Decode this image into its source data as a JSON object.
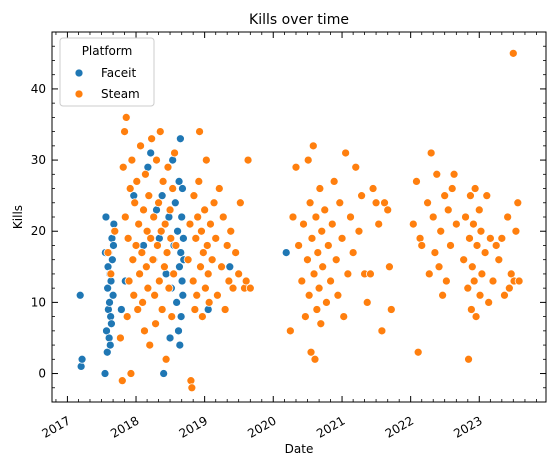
{
  "chart_data": {
    "type": "scatter",
    "title": "Kills over time",
    "xlabel": "Date",
    "ylabel": "Kills",
    "xlim": [
      "2016-10-11",
      "2023-12-22"
    ],
    "ylim": [
      -4,
      48
    ],
    "x_ticks": [
      "2017",
      "2018",
      "2019",
      "2020",
      "2021",
      "2022",
      "2023"
    ],
    "y_ticks": [
      "0",
      "10",
      "20",
      "30",
      "40"
    ],
    "grid": false,
    "legend": {
      "title": "Platform",
      "placement": "top-left"
    },
    "series": [
      {
        "name": "Faceit",
        "color": "#1f77b4",
        "points": [
          [
            "2017-03-10",
            11
          ],
          [
            "2017-03-15",
            1
          ],
          [
            "2017-03-20",
            2
          ],
          [
            "2017-07-20",
            0
          ],
          [
            "2017-07-22",
            17
          ],
          [
            "2017-07-25",
            22
          ],
          [
            "2017-07-28",
            6
          ],
          [
            "2017-08-01",
            3
          ],
          [
            "2017-08-03",
            12
          ],
          [
            "2017-08-05",
            15
          ],
          [
            "2017-08-07",
            9
          ],
          [
            "2017-08-09",
            17
          ],
          [
            "2017-08-11",
            5
          ],
          [
            "2017-08-13",
            10
          ],
          [
            "2017-08-15",
            14
          ],
          [
            "2017-08-17",
            4
          ],
          [
            "2017-08-19",
            8
          ],
          [
            "2017-08-21",
            13
          ],
          [
            "2017-08-23",
            7
          ],
          [
            "2017-08-26",
            19
          ],
          [
            "2017-08-28",
            16
          ],
          [
            "2017-09-01",
            11
          ],
          [
            "2017-09-03",
            18
          ],
          [
            "2017-09-05",
            21
          ],
          [
            "2017-09-07",
            20
          ],
          [
            "2017-10-15",
            9
          ],
          [
            "2017-11-05",
            13
          ],
          [
            "2017-12-20",
            25
          ],
          [
            "2018-01-15",
            21
          ],
          [
            "2018-02-10",
            18
          ],
          [
            "2018-03-05",
            29
          ],
          [
            "2018-03-20",
            31
          ],
          [
            "2018-04-05",
            16
          ],
          [
            "2018-04-20",
            23
          ],
          [
            "2018-05-05",
            19
          ],
          [
            "2018-05-20",
            25
          ],
          [
            "2018-05-28",
            0
          ],
          [
            "2018-06-10",
            14
          ],
          [
            "2018-06-25",
            22
          ],
          [
            "2018-07-01",
            5
          ],
          [
            "2018-07-08",
            12
          ],
          [
            "2018-07-15",
            30
          ],
          [
            "2018-07-22",
            18
          ],
          [
            "2018-07-29",
            24
          ],
          [
            "2018-08-05",
            10
          ],
          [
            "2018-08-10",
            20
          ],
          [
            "2018-08-15",
            6
          ],
          [
            "2018-08-18",
            27
          ],
          [
            "2018-08-20",
            15
          ],
          [
            "2018-08-22",
            4
          ],
          [
            "2018-08-25",
            33
          ],
          [
            "2018-08-27",
            17
          ],
          [
            "2018-08-29",
            8
          ],
          [
            "2018-09-01",
            22
          ],
          [
            "2018-09-03",
            13
          ],
          [
            "2018-09-05",
            26
          ],
          [
            "2018-09-07",
            11
          ],
          [
            "2018-09-10",
            19
          ],
          [
            "2018-09-12",
            16
          ],
          [
            "2019-01-20",
            9
          ],
          [
            "2019-05-15",
            15
          ],
          [
            "2020-03-10",
            17
          ]
        ]
      },
      {
        "name": "Steam",
        "color": "#ff7f0e",
        "points": [
          [
            "2017-08-05",
            17
          ],
          [
            "2017-08-20",
            14
          ],
          [
            "2017-09-10",
            20
          ],
          [
            "2017-10-10",
            5
          ],
          [
            "2017-10-20",
            -1
          ],
          [
            "2017-10-25",
            29
          ],
          [
            "2017-11-01",
            34
          ],
          [
            "2017-11-05",
            22
          ],
          [
            "2017-11-10",
            36
          ],
          [
            "2017-11-15",
            8
          ],
          [
            "2017-11-20",
            19
          ],
          [
            "2017-11-25",
            13
          ],
          [
            "2017-12-01",
            26
          ],
          [
            "2017-12-05",
            0
          ],
          [
            "2017-12-10",
            30
          ],
          [
            "2017-12-15",
            16
          ],
          [
            "2017-12-20",
            11
          ],
          [
            "2017-12-25",
            24
          ],
          [
            "2018-01-01",
            18
          ],
          [
            "2018-01-05",
            27
          ],
          [
            "2018-01-10",
            9
          ],
          [
            "2018-01-15",
            21
          ],
          [
            "2018-01-20",
            14
          ],
          [
            "2018-01-25",
            32
          ],
          [
            "2018-02-01",
            17
          ],
          [
            "2018-02-05",
            10
          ],
          [
            "2018-02-10",
            23
          ],
          [
            "2018-02-15",
            6
          ],
          [
            "2018-02-20",
            28
          ],
          [
            "2018-02-25",
            15
          ],
          [
            "2018-03-01",
            20
          ],
          [
            "2018-03-05",
            12
          ],
          [
            "2018-03-10",
            25
          ],
          [
            "2018-03-15",
            4
          ],
          [
            "2018-03-20",
            19
          ],
          [
            "2018-03-25",
            33
          ],
          [
            "2018-04-01",
            16
          ],
          [
            "2018-04-05",
            22
          ],
          [
            "2018-04-10",
            11
          ],
          [
            "2018-04-15",
            7
          ],
          [
            "2018-04-20",
            30
          ],
          [
            "2018-04-25",
            18
          ],
          [
            "2018-05-01",
            24
          ],
          [
            "2018-05-05",
            13
          ],
          [
            "2018-05-10",
            34
          ],
          [
            "2018-05-15",
            20
          ],
          [
            "2018-05-20",
            9
          ],
          [
            "2018-05-25",
            27
          ],
          [
            "2018-06-01",
            15
          ],
          [
            "2018-06-05",
            21
          ],
          [
            "2018-06-10",
            2
          ],
          [
            "2018-06-15",
            17
          ],
          [
            "2018-06-20",
            29
          ],
          [
            "2018-06-25",
            12
          ],
          [
            "2018-07-01",
            23
          ],
          [
            "2018-07-05",
            19
          ],
          [
            "2018-07-10",
            8
          ],
          [
            "2018-07-15",
            26
          ],
          [
            "2018-07-20",
            14
          ],
          [
            "2018-07-25",
            31
          ],
          [
            "2018-08-01",
            18
          ],
          [
            "2018-10-05",
            16
          ],
          [
            "2018-10-15",
            21
          ],
          [
            "2018-10-20",
            -1
          ],
          [
            "2018-10-25",
            -2
          ],
          [
            "2018-11-01",
            13
          ],
          [
            "2018-11-05",
            25
          ],
          [
            "2018-11-10",
            9
          ],
          [
            "2018-11-15",
            19
          ],
          [
            "2018-11-20",
            11
          ],
          [
            "2018-11-25",
            22
          ],
          [
            "2018-12-01",
            27
          ],
          [
            "2018-12-05",
            34
          ],
          [
            "2018-12-10",
            15
          ],
          [
            "2018-12-15",
            20
          ],
          [
            "2018-12-20",
            8
          ],
          [
            "2018-12-25",
            17
          ],
          [
            "2019-01-01",
            23
          ],
          [
            "2019-01-05",
            12
          ],
          [
            "2019-01-10",
            30
          ],
          [
            "2019-01-15",
            18
          ],
          [
            "2019-01-20",
            14
          ],
          [
            "2019-01-25",
            10
          ],
          [
            "2019-02-01",
            21
          ],
          [
            "2019-02-10",
            16
          ],
          [
            "2019-02-20",
            24
          ],
          [
            "2019-03-01",
            19
          ],
          [
            "2019-03-10",
            11
          ],
          [
            "2019-03-20",
            26
          ],
          [
            "2019-04-01",
            15
          ],
          [
            "2019-04-10",
            22
          ],
          [
            "2019-04-20",
            9
          ],
          [
            "2019-05-01",
            18
          ],
          [
            "2019-05-10",
            13
          ],
          [
            "2019-05-20",
            20
          ],
          [
            "2019-06-01",
            12
          ],
          [
            "2019-06-15",
            17
          ],
          [
            "2019-07-01",
            14
          ],
          [
            "2019-07-10",
            24
          ],
          [
            "2019-08-01",
            12
          ],
          [
            "2019-08-10",
            13
          ],
          [
            "2019-08-20",
            30
          ],
          [
            "2019-09-01",
            12
          ],
          [
            "2020-04-01",
            6
          ],
          [
            "2020-04-15",
            22
          ],
          [
            "2020-05-01",
            29
          ],
          [
            "2020-05-15",
            18
          ],
          [
            "2020-06-01",
            13
          ],
          [
            "2020-06-10",
            21
          ],
          [
            "2020-06-20",
            8
          ],
          [
            "2020-07-01",
            16
          ],
          [
            "2020-07-05",
            30
          ],
          [
            "2020-07-10",
            11
          ],
          [
            "2020-07-15",
            24
          ],
          [
            "2020-07-20",
            3
          ],
          [
            "2020-07-25",
            19
          ],
          [
            "2020-08-01",
            32
          ],
          [
            "2020-08-05",
            14
          ],
          [
            "2020-08-10",
            2
          ],
          [
            "2020-08-15",
            22
          ],
          [
            "2020-08-20",
            9
          ],
          [
            "2020-08-25",
            17
          ],
          [
            "2020-09-01",
            12
          ],
          [
            "2020-09-05",
            26
          ],
          [
            "2020-09-10",
            7
          ],
          [
            "2020-09-15",
            20
          ],
          [
            "2020-09-20",
            15
          ],
          [
            "2020-10-01",
            23
          ],
          [
            "2020-10-10",
            10
          ],
          [
            "2020-10-20",
            18
          ],
          [
            "2020-11-01",
            13
          ],
          [
            "2020-11-10",
            21
          ],
          [
            "2020-11-20",
            27
          ],
          [
            "2020-12-01",
            16
          ],
          [
            "2020-12-10",
            11
          ],
          [
            "2020-12-20",
            24
          ],
          [
            "2021-01-01",
            19
          ],
          [
            "2021-01-10",
            8
          ],
          [
            "2021-01-20",
            31
          ],
          [
            "2021-02-01",
            14
          ],
          [
            "2021-02-15",
            22
          ],
          [
            "2021-03-01",
            17
          ],
          [
            "2021-03-15",
            29
          ],
          [
            "2021-04-01",
            20
          ],
          [
            "2021-04-15",
            25
          ],
          [
            "2021-05-01",
            14
          ],
          [
            "2021-05-15",
            10
          ],
          [
            "2021-06-01",
            14
          ],
          [
            "2021-06-15",
            26
          ],
          [
            "2021-07-01",
            24
          ],
          [
            "2021-07-15",
            21
          ],
          [
            "2021-08-01",
            6
          ],
          [
            "2021-08-15",
            24
          ],
          [
            "2021-09-01",
            23
          ],
          [
            "2021-09-10",
            15
          ],
          [
            "2021-09-20",
            9
          ],
          [
            "2022-01-15",
            21
          ],
          [
            "2022-02-01",
            27
          ],
          [
            "2022-02-10",
            3
          ],
          [
            "2022-02-20",
            19
          ],
          [
            "2022-03-01",
            18
          ],
          [
            "2022-04-01",
            24
          ],
          [
            "2022-04-10",
            14
          ],
          [
            "2022-04-20",
            31
          ],
          [
            "2022-05-01",
            22
          ],
          [
            "2022-05-10",
            17
          ],
          [
            "2022-05-20",
            28
          ],
          [
            "2022-06-01",
            15
          ],
          [
            "2022-06-10",
            20
          ],
          [
            "2022-06-20",
            11
          ],
          [
            "2022-07-01",
            25
          ],
          [
            "2022-07-10",
            13
          ],
          [
            "2022-07-20",
            23
          ],
          [
            "2022-08-01",
            18
          ],
          [
            "2022-08-10",
            26
          ],
          [
            "2022-08-20",
            28
          ],
          [
            "2022-09-01",
            21
          ],
          [
            "2022-10-10",
            16
          ],
          [
            "2022-10-20",
            22
          ],
          [
            "2022-11-01",
            12
          ],
          [
            "2022-11-05",
            2
          ],
          [
            "2022-11-10",
            19
          ],
          [
            "2022-11-15",
            25
          ],
          [
            "2022-11-20",
            9
          ],
          [
            "2022-11-25",
            15
          ],
          [
            "2022-12-01",
            21
          ],
          [
            "2022-12-05",
            13
          ],
          [
            "2022-12-10",
            26
          ],
          [
            "2022-12-15",
            8
          ],
          [
            "2022-12-20",
            18
          ],
          [
            "2023-01-01",
            23
          ],
          [
            "2023-01-05",
            11
          ],
          [
            "2023-01-10",
            20
          ],
          [
            "2023-01-15",
            14
          ],
          [
            "2023-02-01",
            17
          ],
          [
            "2023-02-10",
            25
          ],
          [
            "2023-02-20",
            10
          ],
          [
            "2023-03-01",
            19
          ],
          [
            "2023-03-15",
            13
          ],
          [
            "2023-04-01",
            18
          ],
          [
            "2023-04-15",
            16
          ],
          [
            "2023-05-01",
            19
          ],
          [
            "2023-05-15",
            11
          ],
          [
            "2023-06-01",
            22
          ],
          [
            "2023-06-10",
            12
          ],
          [
            "2023-06-20",
            14
          ],
          [
            "2023-07-01",
            45
          ],
          [
            "2023-07-05",
            13
          ],
          [
            "2023-07-15",
            20
          ],
          [
            "2023-07-25",
            24
          ],
          [
            "2023-08-01",
            13
          ]
        ]
      }
    ]
  }
}
